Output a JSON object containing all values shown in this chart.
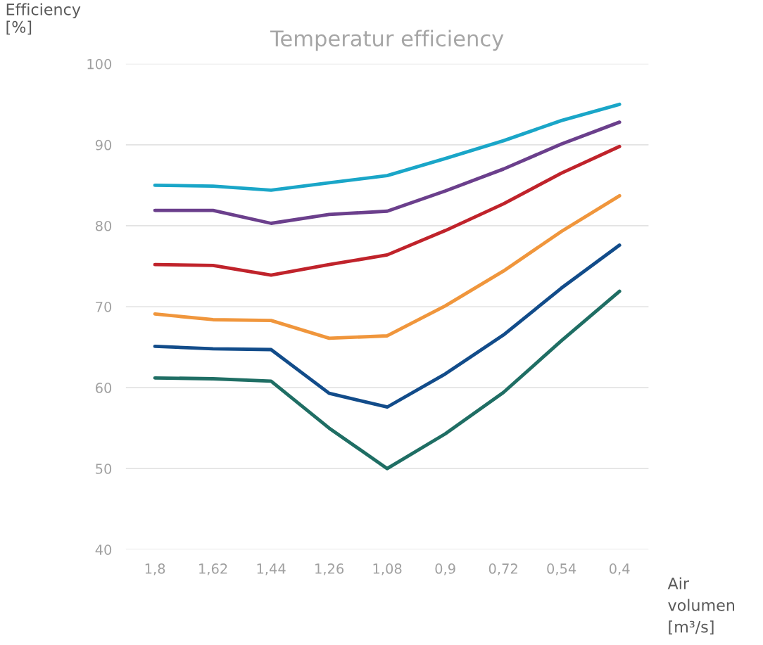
{
  "chart_data": {
    "type": "line",
    "title": "Temperatur efficiency",
    "xlabel": "Air\nvolumen\n[m³/s]",
    "ylabel": "Efficiency\n[%]",
    "categories": [
      "1,8",
      "1,62",
      "1,44",
      "1,26",
      "1,08",
      "0,9",
      "0,72",
      "0,54",
      "0,4"
    ],
    "series": [
      {
        "color": "#1aa6c8",
        "values": [
          85.0,
          84.9,
          84.4,
          85.3,
          86.2,
          88.3,
          90.5,
          93.0,
          95.0
        ]
      },
      {
        "color": "#6b3f8c",
        "values": [
          81.9,
          81.9,
          80.3,
          81.4,
          81.8,
          84.3,
          87.0,
          90.1,
          92.8
        ]
      },
      {
        "color": "#c0232b",
        "values": [
          75.2,
          75.1,
          73.9,
          75.2,
          76.4,
          79.4,
          82.7,
          86.5,
          89.8
        ]
      },
      {
        "color": "#f0963c",
        "values": [
          69.1,
          68.4,
          68.3,
          66.1,
          66.4,
          70.1,
          74.4,
          79.3,
          83.7
        ]
      },
      {
        "color": "#124c8a",
        "values": [
          65.1,
          64.8,
          64.7,
          59.3,
          57.6,
          61.7,
          66.5,
          72.3,
          77.6
        ]
      },
      {
        "color": "#1f6e64",
        "values": [
          61.2,
          61.1,
          60.8,
          55.0,
          50.0,
          54.3,
          59.4,
          65.8,
          71.9
        ]
      }
    ],
    "ylim": [
      40,
      100
    ],
    "yticks": [
      40,
      50,
      60,
      70,
      80,
      90,
      100
    ],
    "grid": "y",
    "marker": "none",
    "line_style": "solid"
  }
}
